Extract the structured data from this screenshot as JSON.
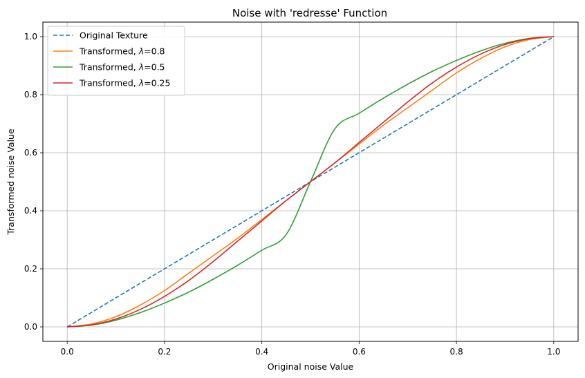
{
  "chart_data": {
    "type": "line",
    "title": "Noise  with 'redresse' Function",
    "xlabel": "Original noise Value",
    "ylabel": "Transformed noise Value",
    "xlim": [
      -0.05,
      1.05
    ],
    "ylim": [
      -0.05,
      1.05
    ],
    "xticks": [
      0.0,
      0.2,
      0.4,
      0.6,
      0.8,
      1.0
    ],
    "xtick_labels": [
      "0.0",
      "0.2",
      "0.4",
      "0.6",
      "0.8",
      "1.0"
    ],
    "yticks": [
      0.0,
      0.2,
      0.4,
      0.6,
      0.8,
      1.0
    ],
    "ytick_labels": [
      "0.0",
      "0.2",
      "0.4",
      "0.6",
      "0.8",
      "1.0"
    ],
    "grid": true,
    "legend_position": "top-left",
    "x": [
      0.0,
      0.05,
      0.1,
      0.15,
      0.2,
      0.25,
      0.3,
      0.35,
      0.4,
      0.45,
      0.5,
      0.55,
      0.6,
      0.65,
      0.7,
      0.75,
      0.8,
      0.85,
      0.9,
      0.95,
      1.0
    ],
    "series": [
      {
        "name": "Original Texture",
        "color": "#1f77b4",
        "dashed": true,
        "values": [
          0.0,
          0.05,
          0.1,
          0.15,
          0.2,
          0.25,
          0.3,
          0.35,
          0.4,
          0.45,
          0.5,
          0.55,
          0.6,
          0.65,
          0.7,
          0.75,
          0.8,
          0.85,
          0.9,
          0.95,
          1.0
        ]
      },
      {
        "name_prefix": "Transformed, ",
        "name_symbol": "λ",
        "name_suffix": "=0.8",
        "color": "#ff7f0e",
        "dashed": false,
        "values": [
          0.0,
          0.01,
          0.035,
          0.075,
          0.125,
          0.185,
          0.245,
          0.305,
          0.37,
          0.435,
          0.5,
          0.565,
          0.63,
          0.695,
          0.755,
          0.815,
          0.875,
          0.925,
          0.965,
          0.99,
          1.0
        ]
      },
      {
        "name_prefix": "Transformed, ",
        "name_symbol": "λ",
        "name_suffix": "=0.5",
        "color": "#2ca02c",
        "dashed": false,
        "values": [
          0.0,
          0.006,
          0.023,
          0.049,
          0.082,
          0.12,
          0.164,
          0.212,
          0.264,
          0.318,
          0.5,
          0.682,
          0.736,
          0.788,
          0.836,
          0.88,
          0.918,
          0.951,
          0.977,
          0.994,
          1.0
        ]
      },
      {
        "name_prefix": "Transformed, ",
        "name_symbol": "λ",
        "name_suffix": "=0.25",
        "color": "#d62728",
        "dashed": false,
        "values": [
          0.0,
          0.007,
          0.027,
          0.06,
          0.105,
          0.16,
          0.225,
          0.295,
          0.365,
          0.435,
          0.5,
          0.565,
          0.635,
          0.705,
          0.775,
          0.84,
          0.895,
          0.94,
          0.973,
          0.993,
          1.0
        ]
      }
    ]
  }
}
